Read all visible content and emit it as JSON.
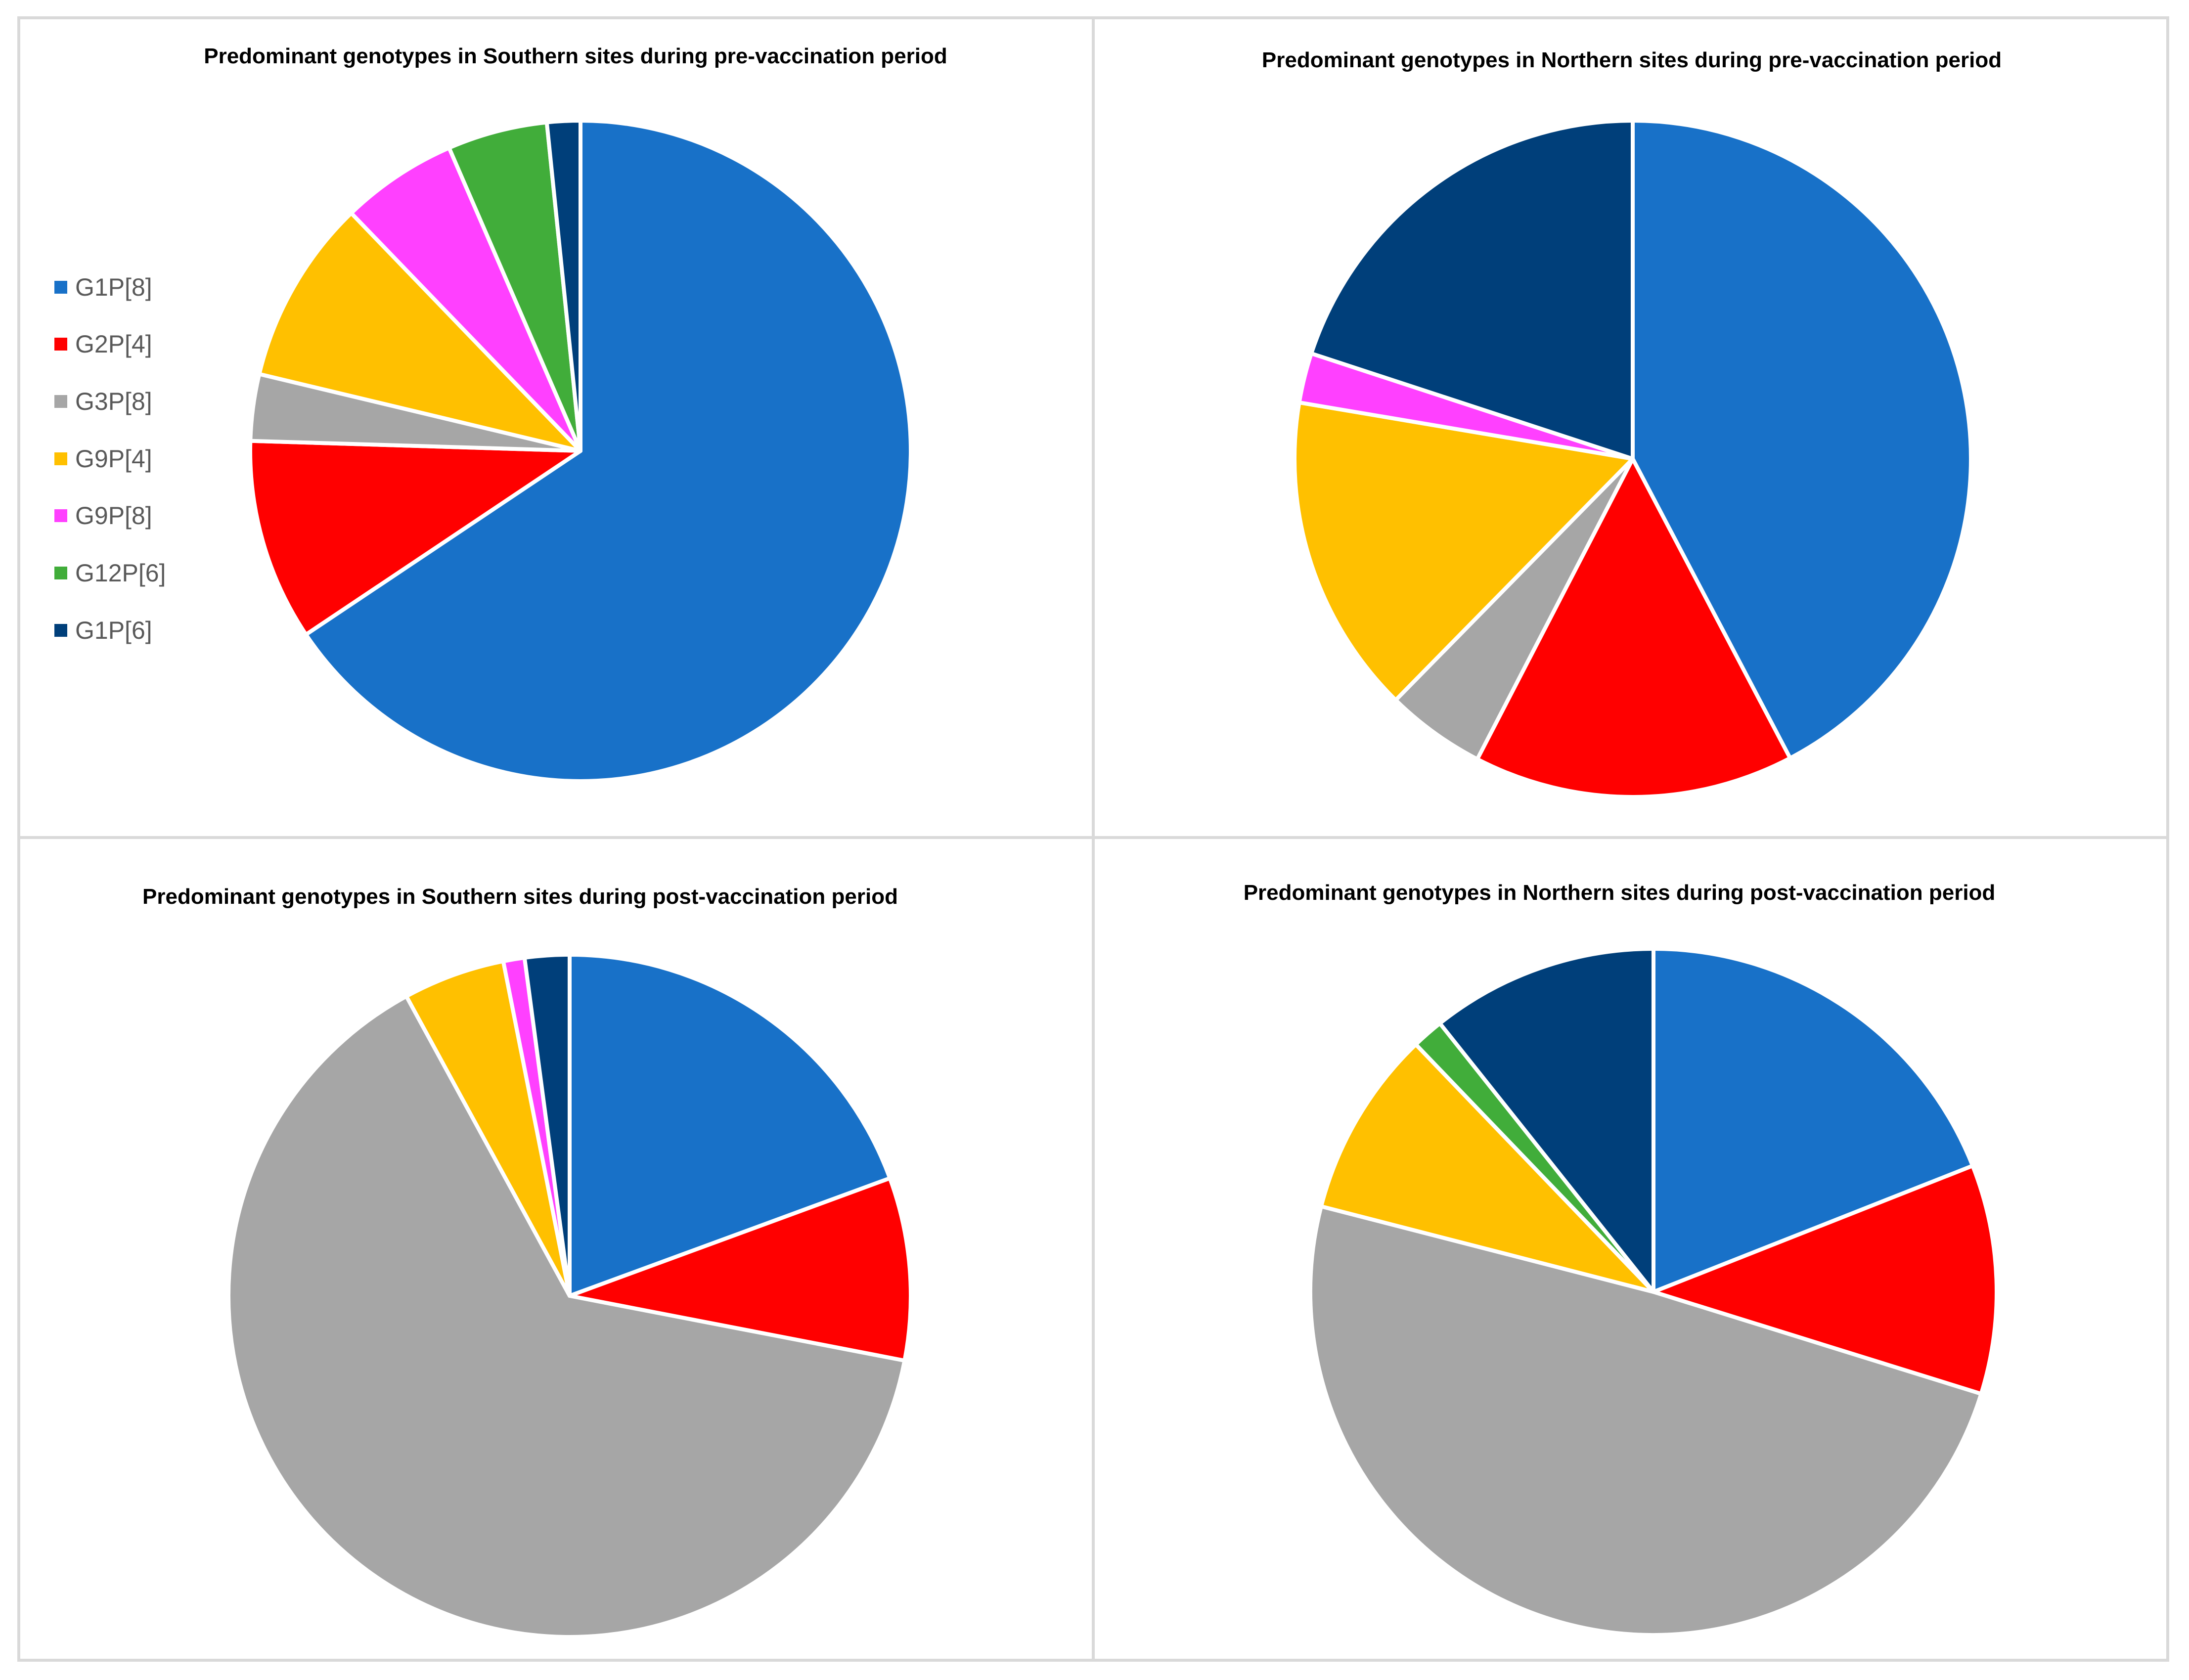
{
  "figure": {
    "legend": [
      {
        "label": "G1P[8]",
        "color": "#1871C8"
      },
      {
        "label": "G2P[4]",
        "color": "#FF0000"
      },
      {
        "label": "G3P[8]",
        "color": "#A6A6A6"
      },
      {
        "label": "G9P[4]",
        "color": "#FFC000"
      },
      {
        "label": "G9P[8]",
        "color": "#FF40FF"
      },
      {
        "label": "G12P[6]",
        "color": "#41AD3A"
      },
      {
        "label": "G1P[6]",
        "color": "#003F7A"
      }
    ]
  },
  "chart_data": [
    {
      "type": "pie",
      "title": "Predominant genotypes in Southern sites during pre-vaccination period",
      "categories": [
        "G1P[8]",
        "G2P[4]",
        "G3P[8]",
        "G9P[4]",
        "G9P[8]",
        "G12P[6]",
        "G1P[6]"
      ],
      "values": [
        64.5,
        9.7,
        3.2,
        8.9,
        5.6,
        4.8,
        1.6
      ],
      "legend": "left"
    },
    {
      "type": "pie",
      "title": "Predominant genotypes in Northern sites during pre-vaccination period",
      "categories": [
        "G1P[8]",
        "G2P[4]",
        "G3P[8]",
        "G9P[4]",
        "G9P[8]",
        "G12P[6]",
        "G1P[6]"
      ],
      "values": [
        40.9,
        14.8,
        4.6,
        14.8,
        2.3,
        0.0,
        19.3
      ]
    },
    {
      "type": "pie",
      "title": "Predominant genotypes in Southern sites during post-vaccination period",
      "categories": [
        "G1P[8]",
        "G2P[4]",
        "G3P[8]",
        "G9P[4]",
        "G9P[8]",
        "G12P[6]",
        "G1P[6]"
      ],
      "values": [
        19.3,
        8.6,
        63.7,
        4.8,
        1.0,
        0.0,
        2.1
      ]
    },
    {
      "type": "pie",
      "title": "Predominant genotypes in Northern sites during post-vaccination period",
      "categories": [
        "G1P[8]",
        "G2P[4]",
        "G3P[8]",
        "G9P[4]",
        "G9P[8]",
        "G12P[6]",
        "G1P[6]"
      ],
      "values": [
        19.2,
        10.9,
        49.7,
        8.9,
        0.0,
        1.5,
        10.8
      ]
    }
  ]
}
